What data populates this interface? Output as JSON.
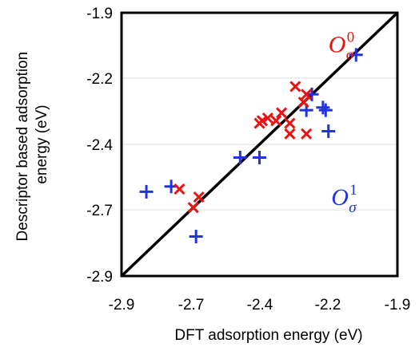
{
  "chart_data": {
    "type": "scatter",
    "title": "",
    "xlabel": "DFT adsorption energy (eV)",
    "ylabel_lines": [
      "Descriptor based adsorption",
      "energy (eV)"
    ],
    "xlim": [
      -2.9,
      -1.9
    ],
    "ylim": [
      -2.9,
      -1.9
    ],
    "x_ticks": [
      "-2.9",
      "-2.7",
      "-2.4",
      "-2.2",
      "-1.9"
    ],
    "y_ticks": [
      "-1.9",
      "-2.2",
      "-2.4",
      "-2.7",
      "-2.9"
    ],
    "grid": "horizontal",
    "diagonal": true,
    "colors": {
      "o_sigma_1": "#2233dd",
      "o_sigma_0": "#ee1111",
      "diagonal": "#000000",
      "grid": "#dddddd"
    },
    "annotations": [
      {
        "series": "o_sigma_0",
        "base": "O",
        "sub": "σ",
        "sup": "0",
        "x": -2.15,
        "y": -2.05
      },
      {
        "series": "o_sigma_1",
        "base": "O",
        "sub": "σ",
        "sup": "1",
        "x": -2.14,
        "y": -2.63
      }
    ],
    "series": [
      {
        "key": "o_sigma_1",
        "marker": "plus",
        "points": [
          {
            "x": -2.81,
            "y": -2.58
          },
          {
            "x": -2.72,
            "y": -2.56
          },
          {
            "x": -2.63,
            "y": -2.75
          },
          {
            "x": -2.47,
            "y": -2.45
          },
          {
            "x": -2.4,
            "y": -2.45
          },
          {
            "x": -2.23,
            "y": -2.27
          },
          {
            "x": -2.21,
            "y": -2.21
          },
          {
            "x": -2.17,
            "y": -2.26
          },
          {
            "x": -2.16,
            "y": -2.27
          },
          {
            "x": -2.15,
            "y": -2.35
          },
          {
            "x": -2.05,
            "y": -2.06
          }
        ]
      },
      {
        "key": "o_sigma_0",
        "marker": "x",
        "points": [
          {
            "x": -2.69,
            "y": -2.57
          },
          {
            "x": -2.64,
            "y": -2.64
          },
          {
            "x": -2.62,
            "y": -2.6
          },
          {
            "x": -2.4,
            "y": -2.32
          },
          {
            "x": -2.39,
            "y": -2.31
          },
          {
            "x": -2.37,
            "y": -2.3
          },
          {
            "x": -2.34,
            "y": -2.31
          },
          {
            "x": -2.32,
            "y": -2.28
          },
          {
            "x": -2.29,
            "y": -2.32
          },
          {
            "x": -2.29,
            "y": -2.36
          },
          {
            "x": -2.27,
            "y": -2.18
          },
          {
            "x": -2.24,
            "y": -2.24
          },
          {
            "x": -2.23,
            "y": -2.21
          },
          {
            "x": -2.23,
            "y": -2.36
          }
        ]
      }
    ]
  }
}
